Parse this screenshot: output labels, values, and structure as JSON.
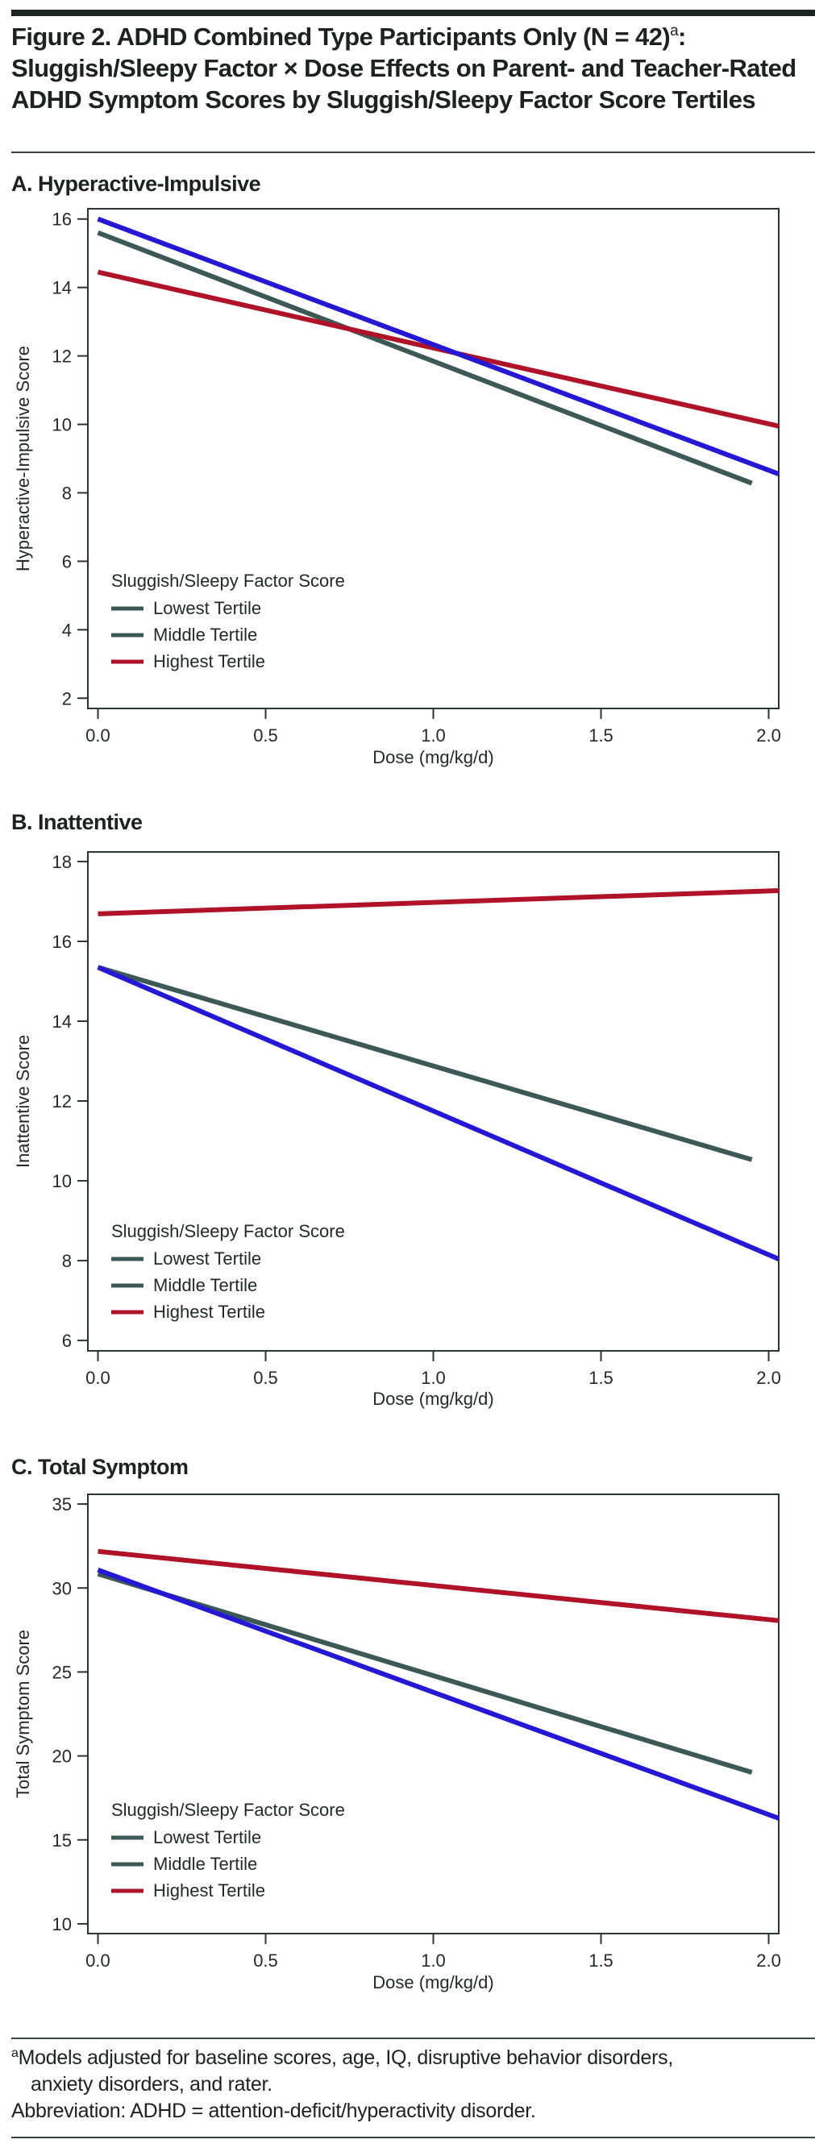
{
  "figure": {
    "title_parts": {
      "line_prefix": "Figure 2. ADHD Combined Type Participants Only (N = 42)",
      "superscript": "a",
      "line_suffix": ": Sluggish/Sleepy Factor × Dose Effects on Parent- and Teacher-Rated ADHD Symptom Scores by Sluggish/Sleepy Factor Score Tertiles"
    }
  },
  "legend": {
    "title": "Sluggish/Sleepy Factor Score",
    "entries": [
      {
        "label": "Lowest Tertile",
        "color": "#3d5957"
      },
      {
        "label": "Middle Tertile",
        "color": "#3d5957"
      },
      {
        "label": "Highest Tertile",
        "color": "#b01228"
      }
    ]
  },
  "colors": {
    "lowest_line": "#2418d6",
    "middle_line": "#3d5957",
    "highest_line": "#b01228",
    "axis": "#2a3434"
  },
  "chart_data": [
    {
      "type": "line",
      "panel_title": "A. Hyperactive-Impulsive",
      "xlabel": "Dose (mg/kg/d)",
      "ylabel": "Hyperactive-Impulsive Score",
      "xlim": [
        -0.03,
        2.03
      ],
      "ylim": [
        1.7,
        16.3
      ],
      "xticks": [
        0.0,
        0.5,
        1.0,
        1.5,
        2.0
      ],
      "xtick_labels": [
        "0.0",
        "0.5",
        "1.0",
        "1.5",
        "2.0"
      ],
      "yticks": [
        2,
        4,
        6,
        8,
        10,
        12,
        14,
        16
      ],
      "ytick_labels": [
        "2",
        "4",
        "6",
        "8",
        "10",
        "12",
        "14",
        "16"
      ],
      "grid": false,
      "legend_position": "bottom-left",
      "series": [
        {
          "name": "Lowest Tertile",
          "color_key": "lowest_line",
          "x": [
            0.0,
            2.03
          ],
          "y": [
            16.0,
            8.55
          ]
        },
        {
          "name": "Middle Tertile",
          "color_key": "middle_line",
          "x": [
            0.0,
            1.95
          ],
          "y": [
            15.6,
            8.28
          ]
        },
        {
          "name": "Highest Tertile",
          "color_key": "highest_line",
          "x": [
            0.0,
            2.03
          ],
          "y": [
            14.45,
            9.95
          ]
        }
      ]
    },
    {
      "type": "line",
      "panel_title": "B. Inattentive",
      "xlabel": "Dose (mg/kg/d)",
      "ylabel": "Inattentive Score",
      "xlim": [
        -0.03,
        2.03
      ],
      "ylim": [
        5.74,
        18.24
      ],
      "xticks": [
        0.0,
        0.5,
        1.0,
        1.5,
        2.0
      ],
      "xtick_labels": [
        "0.0",
        "0.5",
        "1.0",
        "1.5",
        "2.0"
      ],
      "yticks": [
        6,
        8,
        10,
        12,
        14,
        16,
        18
      ],
      "ytick_labels": [
        "6",
        "8",
        "10",
        "12",
        "14",
        "16",
        "18"
      ],
      "grid": false,
      "legend_position": "bottom-left",
      "series": [
        {
          "name": "Lowest Tertile",
          "color_key": "lowest_line",
          "x": [
            0.0,
            2.03
          ],
          "y": [
            15.35,
            8.04
          ]
        },
        {
          "name": "Middle Tertile",
          "color_key": "middle_line",
          "x": [
            0.0,
            1.95
          ],
          "y": [
            15.35,
            10.53
          ]
        },
        {
          "name": "Highest Tertile",
          "color_key": "highest_line",
          "x": [
            0.0,
            2.03
          ],
          "y": [
            16.69,
            17.27
          ]
        }
      ]
    },
    {
      "type": "line",
      "panel_title": "C. Total Symptom",
      "xlabel": "Dose (mg/kg/d)",
      "ylabel": "Total Symptom Score",
      "xlim": [
        -0.03,
        2.03
      ],
      "ylim": [
        9.42,
        35.58
      ],
      "xticks": [
        0.0,
        0.5,
        1.0,
        1.5,
        2.0
      ],
      "xtick_labels": [
        "0.0",
        "0.5",
        "1.0",
        "1.5",
        "2.0"
      ],
      "yticks": [
        10,
        15,
        20,
        25,
        30,
        35
      ],
      "ytick_labels": [
        "10",
        "15",
        "20",
        "25",
        "30",
        "35"
      ],
      "grid": false,
      "legend_position": "bottom-left",
      "series": [
        {
          "name": "Lowest Tertile",
          "color_key": "lowest_line",
          "x": [
            0.0,
            2.03
          ],
          "y": [
            31.08,
            16.29
          ]
        },
        {
          "name": "Middle Tertile",
          "color_key": "middle_line",
          "x": [
            0.0,
            1.95
          ],
          "y": [
            30.84,
            19.02
          ]
        },
        {
          "name": "Highest Tertile",
          "color_key": "highest_line",
          "x": [
            0.0,
            2.03
          ],
          "y": [
            32.18,
            28.06
          ]
        }
      ]
    }
  ],
  "footnotes": {
    "a_marker": "a",
    "a_line1": "Models adjusted for baseline scores, age, IQ, disruptive behavior disorders,",
    "a_line2": "anxiety disorders, and rater.",
    "abbreviation": "Abbreviation: ADHD = attention-deficit/hyperactivity disorder."
  }
}
